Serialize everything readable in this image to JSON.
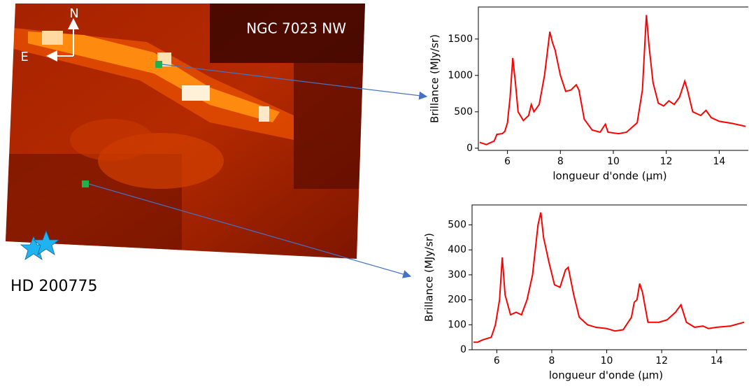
{
  "image": {
    "north": "N",
    "east": "E",
    "field": "NGC 7023 NW",
    "star": "HD 200775"
  },
  "chart_data": [
    {
      "type": "line",
      "xlabel": "longueur d'onde (μm)",
      "ylabel": "Brillance (MJy/sr)",
      "color": "#ff0000",
      "x": [
        4.95,
        5.2,
        5.5,
        5.6,
        5.8,
        5.9,
        6.0,
        6.1,
        6.2,
        6.3,
        6.4,
        6.6,
        6.8,
        6.9,
        7.0,
        7.2,
        7.4,
        7.6,
        7.7,
        7.8,
        8.0,
        8.2,
        8.4,
        8.6,
        8.7,
        8.9,
        9.2,
        9.5,
        9.7,
        9.8,
        10.2,
        10.5,
        10.9,
        11.1,
        11.2,
        11.25,
        11.35,
        11.5,
        11.7,
        11.9,
        12.1,
        12.3,
        12.5,
        12.7,
        12.8,
        13.0,
        13.3,
        13.5,
        13.7,
        14.0,
        14.5,
        15.0
      ],
      "values": [
        80,
        50,
        100,
        190,
        200,
        230,
        350,
        700,
        1240,
        900,
        500,
        380,
        450,
        600,
        500,
        600,
        1000,
        1600,
        1450,
        1350,
        1000,
        780,
        800,
        870,
        800,
        400,
        250,
        220,
        330,
        220,
        200,
        220,
        350,
        800,
        1500,
        1830,
        1400,
        900,
        620,
        580,
        650,
        600,
        700,
        920,
        800,
        500,
        450,
        520,
        420,
        370,
        340,
        300
      ],
      "xlim": [
        4.9,
        15.1
      ],
      "ylim": [
        -30,
        1940
      ],
      "xticks": [
        6,
        8,
        10,
        12,
        14
      ],
      "yticks": [
        0,
        500,
        1000,
        1500
      ]
    },
    {
      "type": "line",
      "xlabel": "longueur d'onde (μm)",
      "ylabel": "Brillance (MJy/sr)",
      "color": "#ff0000",
      "x": [
        5.15,
        5.3,
        5.5,
        5.8,
        5.95,
        6.1,
        6.2,
        6.3,
        6.5,
        6.7,
        6.9,
        7.1,
        7.3,
        7.5,
        7.6,
        7.7,
        7.9,
        8.1,
        8.3,
        8.5,
        8.6,
        8.8,
        9.0,
        9.3,
        9.6,
        10.0,
        10.3,
        10.6,
        10.9,
        11.0,
        11.1,
        11.2,
        11.3,
        11.5,
        11.9,
        12.2,
        12.5,
        12.7,
        12.9,
        13.2,
        13.5,
        13.7,
        14.0,
        14.5,
        15.0
      ],
      "values": [
        30,
        30,
        40,
        50,
        100,
        200,
        370,
        220,
        140,
        150,
        140,
        200,
        300,
        500,
        550,
        450,
        350,
        260,
        250,
        320,
        330,
        220,
        130,
        100,
        90,
        85,
        75,
        80,
        130,
        190,
        200,
        265,
        230,
        110,
        110,
        120,
        150,
        180,
        110,
        90,
        95,
        85,
        90,
        95,
        110
      ],
      "xlim": [
        5.1,
        15.1
      ],
      "ylim": [
        0,
        580
      ],
      "xticks": [
        6,
        8,
        10,
        12,
        14
      ],
      "yticks": [
        0,
        100,
        200,
        300,
        400,
        500
      ]
    }
  ]
}
